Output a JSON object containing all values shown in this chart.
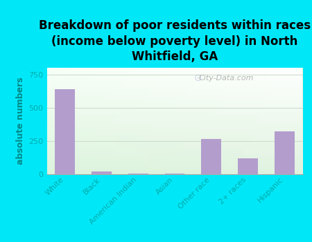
{
  "title": "Breakdown of poor residents within races\n(income below poverty level) in North\nWhitfield, GA",
  "categories": [
    "White",
    "Black",
    "American Indian",
    "Asian",
    "Other race",
    "2+ races",
    "Hispanic"
  ],
  "values": [
    640,
    20,
    5,
    4,
    265,
    120,
    320
  ],
  "bar_color": "#b39dcd",
  "ylabel": "absolute numbers",
  "ylim": [
    0,
    800
  ],
  "yticks": [
    0,
    250,
    500,
    750
  ],
  "bg_outer": "#00e8f8",
  "watermark": "City-Data.com",
  "title_fontsize": 12,
  "ylabel_fontsize": 9,
  "tick_fontsize": 8,
  "tick_color": "#00aaaa",
  "ylabel_color": "#008888",
  "grid_color": "#ccddcc",
  "bottom_color": "#c8e6c0",
  "top_color": "#f5fff5"
}
